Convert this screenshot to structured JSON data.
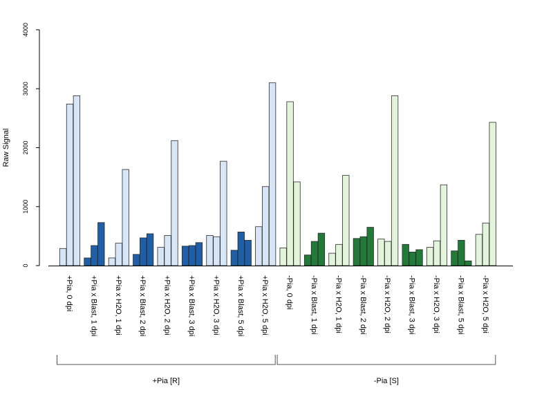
{
  "chart_data": {
    "type": "bar",
    "ylabel": "Raw Signal",
    "ylim": [
      0,
      4000
    ],
    "yticks": [
      0,
      1000,
      2000,
      3000,
      4000
    ],
    "grid": false,
    "categories": [
      "+Pia, 0 dpi",
      "+Pia x Blast, 1 dpi",
      "+Pia x H2O, 1 dpi",
      "+Pia x Blast, 2 dpi",
      "+Pia x H2O, 2 dpi",
      "+Pia x Blast, 3 dpi",
      "+Pia x H2O, 3 dpi",
      "+Pia x Blast, 5 dpi",
      "+Pia x H2O, 5 dpi",
      "-Pia, 0 dpi",
      "-Pia x Blast, 1 dpi",
      "-Pia x H2O, 1 dpi",
      "-Pia x Blast, 2 dpi",
      "-Pia x H2O, 2 dpi",
      "-Pia x Blast, 3 dpi",
      "-Pia x H2O, 3 dpi",
      "-Pia x Blast, 5 dpi",
      "-Pia x H2O, 5 dpi"
    ],
    "replicates": [
      [
        290,
        2740,
        2880
      ],
      [
        130,
        340,
        730
      ],
      [
        130,
        380,
        1630
      ],
      [
        190,
        470,
        540
      ],
      [
        310,
        510,
        2120
      ],
      [
        330,
        340,
        390
      ],
      [
        510,
        490,
        1770
      ],
      [
        260,
        570,
        430
      ],
      [
        660,
        1340,
        3100
      ],
      [
        300,
        2780,
        1420
      ],
      [
        180,
        410,
        550
      ],
      [
        210,
        360,
        1530
      ],
      [
        460,
        490,
        650
      ],
      [
        450,
        410,
        2880
      ],
      [
        360,
        230,
        270
      ],
      [
        310,
        420,
        1370
      ],
      [
        250,
        430,
        80
      ],
      [
        530,
        720,
        2430
      ]
    ],
    "bar_colors": [
      "#d6e6f7",
      "#1f5fa8",
      "#d6e6f7",
      "#1f5fa8",
      "#d6e6f7",
      "#1f5fa8",
      "#d6e6f7",
      "#1f5fa8",
      "#d6e6f7",
      "#e2f5db",
      "#217a38",
      "#e2f5db",
      "#217a38",
      "#e2f5db",
      "#217a38",
      "#e2f5db",
      "#217a38",
      "#e2f5db"
    ],
    "groups": [
      {
        "label": "+Pia [R]",
        "from": 0,
        "to": 8
      },
      {
        "label": "-Pia [S]",
        "from": 9,
        "to": 17
      }
    ]
  }
}
